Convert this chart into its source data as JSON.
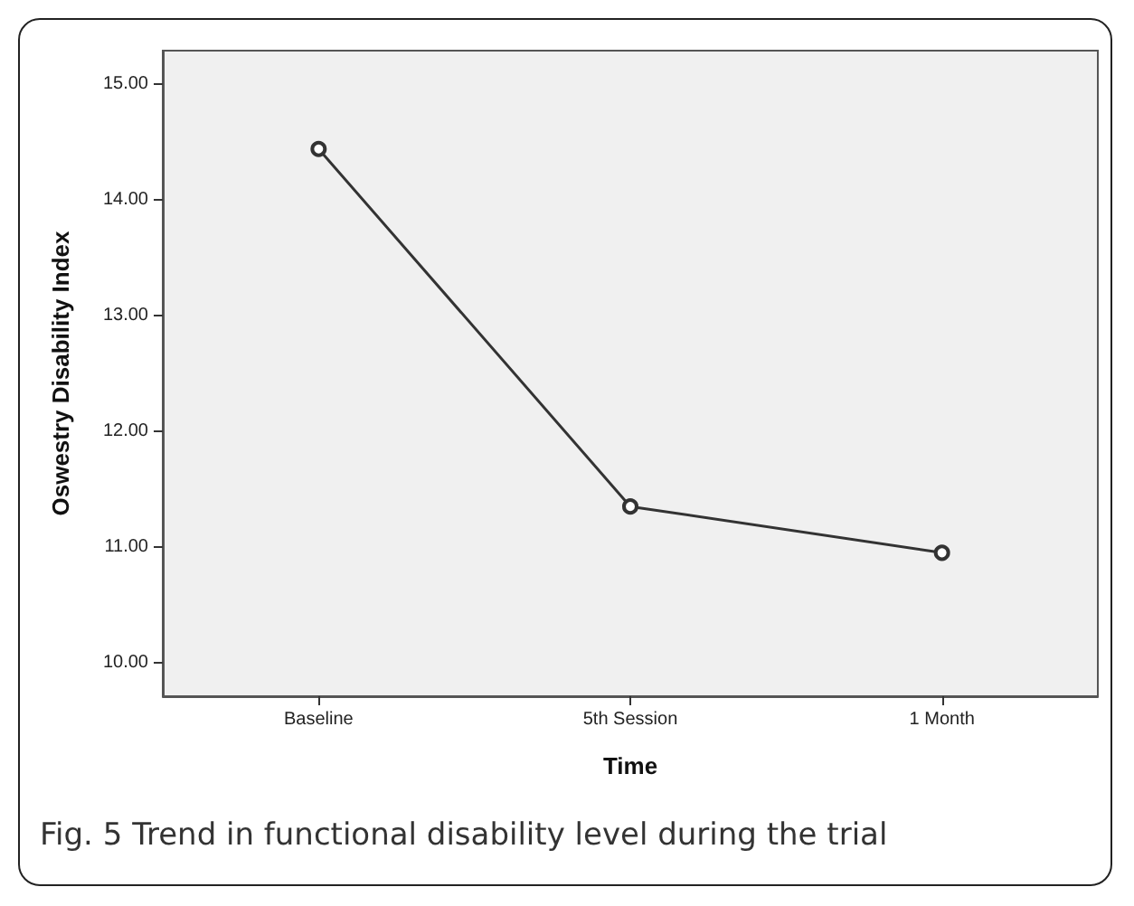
{
  "chart_data": {
    "type": "line",
    "xlabel": "Time",
    "ylabel": "Oswestry Disability Index",
    "categories": [
      "Baseline",
      "5th Session",
      "1 Month"
    ],
    "series": [
      {
        "color": "#333333",
        "values": [
          14.44,
          11.35,
          10.95
        ]
      }
    ],
    "ylim": [
      9.71,
      15.29
    ],
    "yticks": [
      {
        "value": 10,
        "label": "10.00"
      },
      {
        "value": 11,
        "label": "11.00"
      },
      {
        "value": 12,
        "label": "12.00"
      },
      {
        "value": 13,
        "label": "13.00"
      },
      {
        "value": 14,
        "label": "14.00"
      },
      {
        "value": 15,
        "label": "15.00"
      }
    ],
    "grid": false,
    "marker": "circle",
    "line_style": "solid",
    "annotations": [
      "Fig. 5 Trend in functional disability level during the trial"
    ]
  }
}
